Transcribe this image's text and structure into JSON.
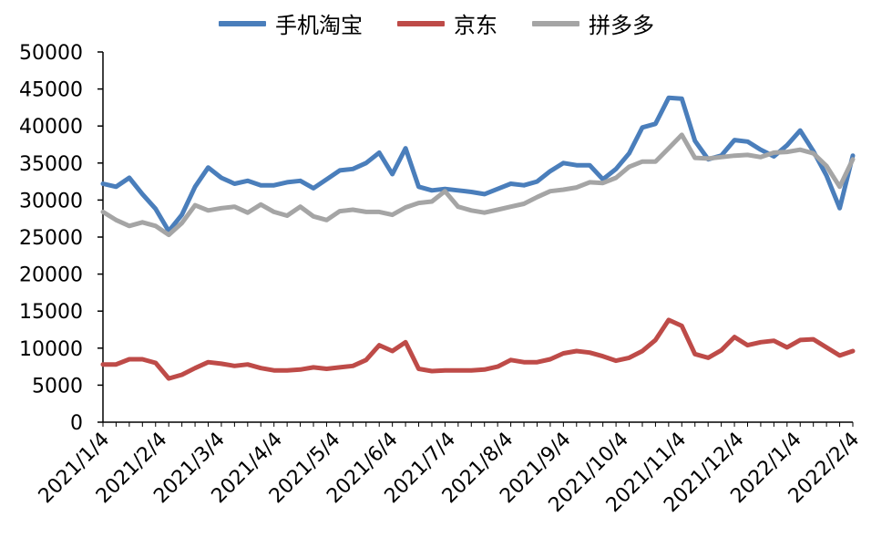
{
  "chart_data": {
    "type": "line",
    "title": "",
    "xlabel": "",
    "ylabel": "",
    "ylim": [
      0,
      50000
    ],
    "yticks": [
      0,
      5000,
      10000,
      15000,
      20000,
      25000,
      30000,
      35000,
      40000,
      45000,
      50000
    ],
    "xtick_labels": [
      "2021/1/4",
      "2021/2/4",
      "2021/3/4",
      "2021/4/4",
      "2021/5/4",
      "2021/6/4",
      "2021/7/4",
      "2021/8/4",
      "2021/9/4",
      "2021/10/4",
      "2021/11/4",
      "2021/12/4",
      "2022/1/4",
      "2022/2/4"
    ],
    "grid": false,
    "legend_position": "top-center",
    "series": [
      {
        "name": "手机淘宝",
        "color": "#4a7ebb",
        "values": [
          32200,
          31800,
          33000,
          30800,
          28800,
          25800,
          28000,
          31800,
          34400,
          33000,
          32200,
          32600,
          32000,
          32000,
          32400,
          32600,
          31600,
          32800,
          34000,
          34200,
          35000,
          36400,
          33500,
          37000,
          31800,
          31300,
          31500,
          31300,
          31100,
          30800,
          31500,
          32200,
          32000,
          32500,
          33900,
          35000,
          34700,
          34700,
          32800,
          34200,
          36300,
          39800,
          40300,
          43800,
          43700,
          38000,
          35500,
          36000,
          38100,
          37900,
          36800,
          35900,
          37400,
          39400,
          36600,
          33300,
          28900,
          36000
        ]
      },
      {
        "name": "京东",
        "color": "#be4b48",
        "values": [
          7800,
          7800,
          8500,
          8500,
          8000,
          5900,
          6400,
          7300,
          8100,
          7900,
          7600,
          7800,
          7300,
          7000,
          7000,
          7100,
          7400,
          7200,
          7400,
          7600,
          8400,
          10400,
          9600,
          10800,
          7200,
          6900,
          7000,
          7000,
          7000,
          7100,
          7500,
          8400,
          8100,
          8100,
          8500,
          9300,
          9600,
          9400,
          8900,
          8300,
          8700,
          9600,
          11100,
          13800,
          13000,
          9200,
          8700,
          9700,
          11500,
          10400,
          10800,
          11000,
          10100,
          11100,
          11200,
          10100,
          9000,
          9600
        ]
      },
      {
        "name": "拼多多",
        "color": "#a5a5a5",
        "values": [
          28400,
          27300,
          26500,
          27000,
          26500,
          25300,
          26900,
          29300,
          28600,
          28900,
          29100,
          28300,
          29400,
          28400,
          27900,
          29100,
          27800,
          27300,
          28500,
          28700,
          28400,
          28400,
          28000,
          29000,
          29600,
          29800,
          31200,
          29100,
          28600,
          28300,
          28700,
          29100,
          29500,
          30400,
          31200,
          31400,
          31700,
          32400,
          32300,
          33000,
          34500,
          35200,
          35200,
          37000,
          38800,
          35700,
          35600,
          35800,
          36000,
          36100,
          35800,
          36400,
          36500,
          36800,
          36300,
          34600,
          31800,
          35500
        ]
      }
    ]
  }
}
